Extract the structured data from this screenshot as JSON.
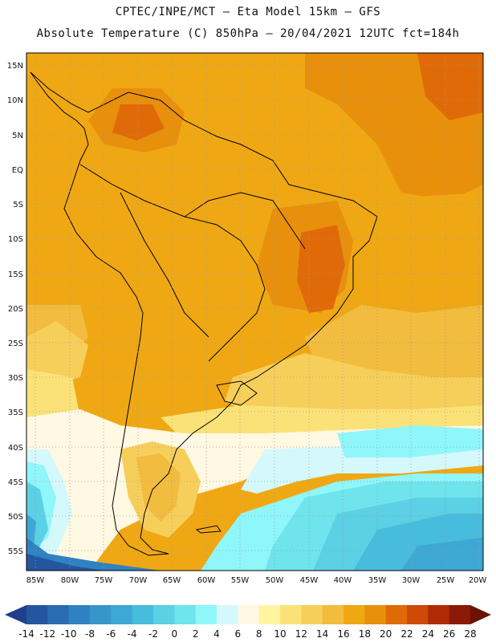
{
  "header": {
    "line1": "CPTEC/INPE/MCT –  Eta Model 15km – GFS",
    "line2": "Absolute Temperature (C) 850hPa – 20/04/2021 12UTC fct=184h"
  },
  "map": {
    "lat_labels": [
      "15N",
      "10N",
      "5N",
      "EQ",
      "5S",
      "10S",
      "15S",
      "20S",
      "25S",
      "30S",
      "35S",
      "40S",
      "45S",
      "50S",
      "55S"
    ],
    "lon_labels": [
      "85W",
      "80W",
      "75W",
      "70W",
      "65W",
      "60W",
      "55W",
      "50W",
      "45W",
      "40W",
      "35W",
      "30W",
      "25W",
      "20W"
    ]
  },
  "colorbar": {
    "labels": [
      "-14",
      "-12",
      "-10",
      "-8",
      "-6",
      "-4",
      "-2",
      "0",
      "2",
      "4",
      "6",
      "8",
      "10",
      "12",
      "14",
      "16",
      "18",
      "20",
      "22",
      "24",
      "26",
      "28"
    ],
    "colors": [
      "#1f3f8c",
      "#2456a0",
      "#2a6cb2",
      "#2f82c2",
      "#3795cc",
      "#3ea8d4",
      "#48bcdc",
      "#5cd0e4",
      "#6fe4ec",
      "#8ff6fa",
      "#d4f8fc",
      "#fff8e2",
      "#fff4a0",
      "#fbe278",
      "#f6cf5a",
      "#f2bc3e",
      "#efa814",
      "#e8900c",
      "#e06a08",
      "#cf4a06",
      "#b02a06",
      "#8a1a06",
      "#6a1206"
    ]
  }
}
